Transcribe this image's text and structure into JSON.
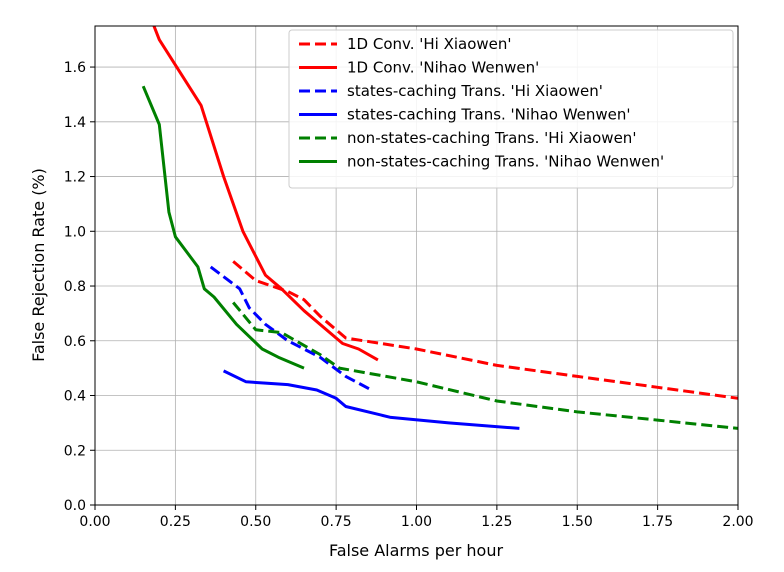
{
  "chart_data": {
    "type": "line",
    "title": "",
    "xlabel": "False Alarms per hour",
    "ylabel": "False Rejection Rate (%)",
    "xlim": [
      0.0,
      2.0
    ],
    "ylim": [
      0.0,
      1.75
    ],
    "xticks": [
      0.0,
      0.25,
      0.5,
      0.75,
      1.0,
      1.25,
      1.5,
      1.75,
      2.0
    ],
    "xtick_labels": [
      "0.00",
      "0.25",
      "0.50",
      "0.75",
      "1.00",
      "1.25",
      "1.50",
      "1.75",
      "2.00"
    ],
    "yticks": [
      0.0,
      0.2,
      0.4,
      0.6,
      0.8,
      1.0,
      1.2,
      1.4,
      1.6
    ],
    "ytick_labels": [
      "0.0",
      "0.2",
      "0.4",
      "0.6",
      "0.8",
      "1.0",
      "1.2",
      "1.4",
      "1.6"
    ],
    "grid": true,
    "legend_position": "top-right",
    "series": [
      {
        "name": "1D Conv. 'Hi Xiaowen'",
        "color": "#ff0000",
        "dash": "dashed",
        "x": [
          0.43,
          0.5,
          0.6,
          0.65,
          0.7,
          0.78,
          1.0,
          1.25,
          1.5,
          1.75,
          2.0
        ],
        "y": [
          0.89,
          0.82,
          0.78,
          0.75,
          0.69,
          0.61,
          0.57,
          0.51,
          0.47,
          0.43,
          0.39
        ]
      },
      {
        "name": "1D Conv. 'Nihao Wenwen'",
        "color": "#ff0000",
        "dash": "solid",
        "x": [
          0.18,
          0.2,
          0.33,
          0.4,
          0.46,
          0.53,
          0.58,
          0.65,
          0.77,
          0.82,
          0.88
        ],
        "y": [
          1.76,
          1.7,
          1.46,
          1.2,
          1.0,
          0.84,
          0.79,
          0.71,
          0.59,
          0.57,
          0.53
        ]
      },
      {
        "name": "states-caching Trans. 'Hi Xiaowen'",
        "color": "#0000ff",
        "dash": "dashed",
        "x": [
          0.36,
          0.45,
          0.48,
          0.53,
          0.6,
          0.7,
          0.78,
          0.86
        ],
        "y": [
          0.87,
          0.79,
          0.72,
          0.66,
          0.6,
          0.54,
          0.47,
          0.42
        ]
      },
      {
        "name": "states-caching Trans. 'Nihao Wenwen'",
        "color": "#0000ff",
        "dash": "solid",
        "x": [
          0.4,
          0.47,
          0.6,
          0.69,
          0.75,
          0.78,
          0.92,
          1.1,
          1.32
        ],
        "y": [
          0.49,
          0.45,
          0.44,
          0.42,
          0.39,
          0.36,
          0.32,
          0.3,
          0.28
        ]
      },
      {
        "name": "non-states-caching Trans. 'Hi Xiaowen'",
        "color": "#008000",
        "dash": "dashed",
        "x": [
          0.43,
          0.5,
          0.58,
          0.7,
          0.76,
          1.0,
          1.25,
          1.5,
          1.75,
          2.0
        ],
        "y": [
          0.74,
          0.64,
          0.63,
          0.55,
          0.5,
          0.45,
          0.38,
          0.34,
          0.31,
          0.28
        ]
      },
      {
        "name": "non-states-caching Trans. 'Nihao Wenwen'",
        "color": "#008000",
        "dash": "solid",
        "x": [
          0.15,
          0.2,
          0.23,
          0.25,
          0.32,
          0.34,
          0.37,
          0.44,
          0.52,
          0.57,
          0.65
        ],
        "y": [
          1.53,
          1.39,
          1.07,
          0.98,
          0.87,
          0.79,
          0.76,
          0.66,
          0.57,
          0.54,
          0.5
        ]
      }
    ]
  }
}
